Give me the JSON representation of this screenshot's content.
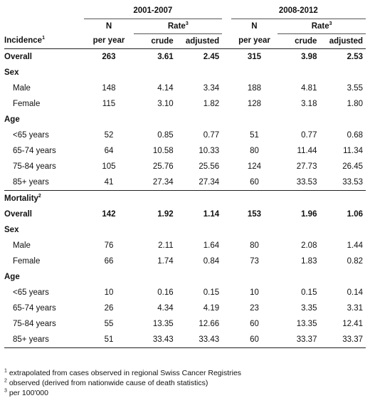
{
  "header": {
    "period_1": "2001-2007",
    "period_2": "2008-2012",
    "n_label": "N",
    "per_year_label": "per year",
    "rate_label": "Rate",
    "rate_sup": "3",
    "crude_label": "crude",
    "adjusted_label": "adjusted"
  },
  "incidence": {
    "label": "Incidence",
    "sup": "1",
    "overall": {
      "label": "Overall",
      "v": [
        "263",
        "3.61",
        "2.45",
        "315",
        "3.98",
        "2.53"
      ]
    },
    "sex_label": "Sex",
    "sex": [
      {
        "label": "Male",
        "v": [
          "148",
          "4.14",
          "3.34",
          "188",
          "4.81",
          "3.55"
        ]
      },
      {
        "label": "Female",
        "v": [
          "115",
          "3.10",
          "1.82",
          "128",
          "3.18",
          "1.80"
        ]
      }
    ],
    "age_label": "Age",
    "age": [
      {
        "label": "<65 years",
        "v": [
          "52",
          "0.85",
          "0.77",
          "51",
          "0.77",
          "0.68"
        ]
      },
      {
        "label": "65-74 years",
        "v": [
          "64",
          "10.58",
          "10.33",
          "80",
          "11.44",
          "11.34"
        ]
      },
      {
        "label": "75-84 years",
        "v": [
          "105",
          "25.76",
          "25.56",
          "124",
          "27.73",
          "26.45"
        ]
      },
      {
        "label": "85+ years",
        "v": [
          "41",
          "27.34",
          "27.34",
          "60",
          "33.53",
          "33.53"
        ]
      }
    ]
  },
  "mortality": {
    "label": "Mortality",
    "sup": "2",
    "overall": {
      "label": "Overall",
      "v": [
        "142",
        "1.92",
        "1.14",
        "153",
        "1.96",
        "1.06"
      ]
    },
    "sex_label": "Sex",
    "sex": [
      {
        "label": "Male",
        "v": [
          "76",
          "2.11",
          "1.64",
          "80",
          "2.08",
          "1.44"
        ]
      },
      {
        "label": "Female",
        "v": [
          "66",
          "1.74",
          "0.84",
          "73",
          "1.83",
          "0.82"
        ]
      }
    ],
    "age_label": "Age",
    "age": [
      {
        "label": "<65 years",
        "v": [
          "10",
          "0.16",
          "0.15",
          "10",
          "0.15",
          "0.14"
        ]
      },
      {
        "label": "65-74 years",
        "v": [
          "26",
          "4.34",
          "4.19",
          "23",
          "3.35",
          "3.31"
        ]
      },
      {
        "label": "75-84 years",
        "v": [
          "55",
          "13.35",
          "12.66",
          "60",
          "13.35",
          "12.41"
        ]
      },
      {
        "label": "85+ years",
        "v": [
          "51",
          "33.43",
          "33.43",
          "60",
          "33.37",
          "33.37"
        ]
      }
    ]
  },
  "footnotes": [
    {
      "sup": "1",
      "text": "extrapolated from cases observed in regional Swiss Cancer Registries"
    },
    {
      "sup": "2",
      "text": "observed (derived from nationwide cause of death statistics)"
    },
    {
      "sup": "3",
      "text": "per 100'000"
    }
  ]
}
